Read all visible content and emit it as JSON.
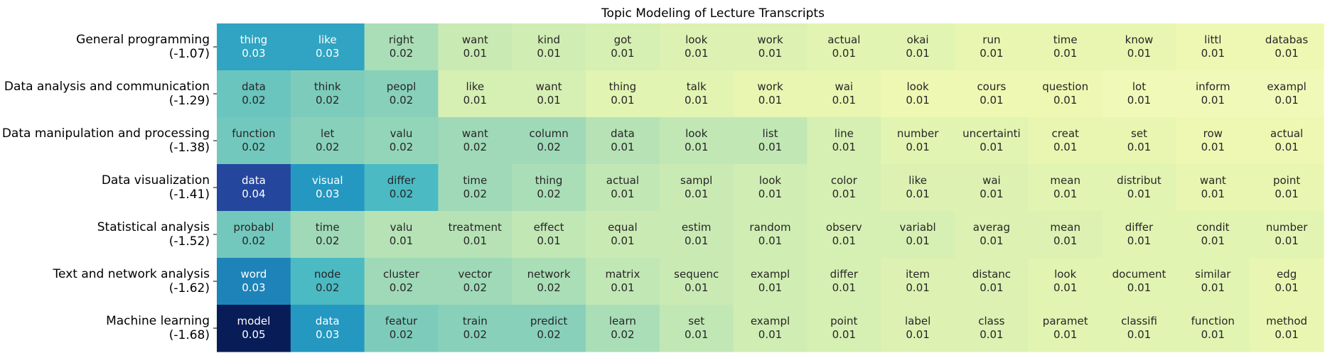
{
  "chart_data": {
    "type": "heatmap",
    "title": "Topic Modeling of Lecture Transcripts",
    "colormap": "YlGnBu",
    "color_range": [
      0,
      0.05
    ],
    "grid": false,
    "rows": [
      {
        "topic": "General programming",
        "score": "(-1.07)",
        "words": [
          "thing",
          "like",
          "right",
          "want",
          "kind",
          "got",
          "look",
          "work",
          "actual",
          "okai",
          "run",
          "time",
          "know",
          "littl",
          "databas"
        ],
        "values": [
          0.03,
          0.03,
          0.02,
          0.01,
          0.01,
          0.01,
          0.01,
          0.01,
          0.01,
          0.01,
          0.01,
          0.01,
          0.01,
          0.01,
          0.01
        ],
        "shades": [
          0.028,
          0.028,
          0.015,
          0.012,
          0.011,
          0.01,
          0.009,
          0.009,
          0.008,
          0.008,
          0.007,
          0.007,
          0.007,
          0.006,
          0.006
        ]
      },
      {
        "topic": "Data analysis and communication",
        "score": "(-1.29)",
        "words": [
          "data",
          "think",
          "peopl",
          "like",
          "want",
          "thing",
          "talk",
          "work",
          "wai",
          "look",
          "cours",
          "question",
          "lot",
          "inform",
          "exampl"
        ],
        "values": [
          0.02,
          0.02,
          0.02,
          0.01,
          0.01,
          0.01,
          0.01,
          0.01,
          0.01,
          0.01,
          0.01,
          0.01,
          0.01,
          0.01,
          0.01
        ],
        "shades": [
          0.021,
          0.019,
          0.018,
          0.01,
          0.01,
          0.008,
          0.008,
          0.007,
          0.007,
          0.006,
          0.006,
          0.006,
          0.005,
          0.005,
          0.005
        ]
      },
      {
        "topic": "Data manipulation and processing",
        "score": "(-1.38)",
        "words": [
          "function",
          "let",
          "valu",
          "want",
          "column",
          "data",
          "look",
          "list",
          "line",
          "number",
          "uncertainti",
          "creat",
          "set",
          "row",
          "actual"
        ],
        "values": [
          0.02,
          0.02,
          0.02,
          0.02,
          0.02,
          0.01,
          0.01,
          0.01,
          0.01,
          0.01,
          0.01,
          0.01,
          0.01,
          0.01,
          0.01
        ],
        "shades": [
          0.02,
          0.018,
          0.017,
          0.016,
          0.016,
          0.014,
          0.013,
          0.013,
          0.01,
          0.008,
          0.008,
          0.007,
          0.007,
          0.006,
          0.006
        ]
      },
      {
        "topic": "Data visualization",
        "score": "(-1.41)",
        "words": [
          "data",
          "visual",
          "differ",
          "time",
          "thing",
          "actual",
          "sampl",
          "look",
          "color",
          "like",
          "wai",
          "mean",
          "distribut",
          "want",
          "point"
        ],
        "values": [
          0.04,
          0.03,
          0.02,
          0.02,
          0.02,
          0.01,
          0.01,
          0.01,
          0.01,
          0.01,
          0.01,
          0.01,
          0.01,
          0.01,
          0.01
        ],
        "shades": [
          0.041,
          0.03,
          0.024,
          0.016,
          0.015,
          0.013,
          0.012,
          0.011,
          0.01,
          0.009,
          0.009,
          0.008,
          0.008,
          0.007,
          0.007
        ]
      },
      {
        "topic": "Statistical analysis",
        "score": "(-1.52)",
        "words": [
          "probabl",
          "time",
          "valu",
          "treatment",
          "effect",
          "equal",
          "estim",
          "random",
          "observ",
          "variabl",
          "averag",
          "mean",
          "differ",
          "condit",
          "number"
        ],
        "values": [
          0.02,
          0.02,
          0.01,
          0.01,
          0.01,
          0.01,
          0.01,
          0.01,
          0.01,
          0.01,
          0.01,
          0.01,
          0.01,
          0.01,
          0.01
        ],
        "shades": [
          0.02,
          0.016,
          0.014,
          0.014,
          0.013,
          0.012,
          0.012,
          0.011,
          0.01,
          0.01,
          0.009,
          0.009,
          0.008,
          0.008,
          0.008
        ]
      },
      {
        "topic": "Text and network analysis",
        "score": "(-1.62)",
        "words": [
          "word",
          "node",
          "cluster",
          "vector",
          "network",
          "matrix",
          "sequenc",
          "exampl",
          "differ",
          "item",
          "distanc",
          "look",
          "document",
          "similar",
          "edg"
        ],
        "values": [
          0.03,
          0.02,
          0.02,
          0.02,
          0.02,
          0.01,
          0.01,
          0.01,
          0.01,
          0.01,
          0.01,
          0.01,
          0.01,
          0.01,
          0.01
        ],
        "shades": [
          0.033,
          0.024,
          0.016,
          0.016,
          0.015,
          0.013,
          0.012,
          0.011,
          0.01,
          0.009,
          0.009,
          0.008,
          0.008,
          0.008,
          0.007
        ]
      },
      {
        "topic": "Machine learning",
        "score": "(-1.68)",
        "words": [
          "model",
          "data",
          "featur",
          "train",
          "predict",
          "learn",
          "set",
          "exampl",
          "point",
          "label",
          "class",
          "paramet",
          "classifi",
          "function",
          "method"
        ],
        "values": [
          0.05,
          0.03,
          0.02,
          0.02,
          0.02,
          0.02,
          0.01,
          0.01,
          0.01,
          0.01,
          0.01,
          0.01,
          0.01,
          0.01,
          0.01
        ],
        "shades": [
          0.052,
          0.03,
          0.019,
          0.018,
          0.018,
          0.015,
          0.013,
          0.011,
          0.01,
          0.009,
          0.009,
          0.008,
          0.008,
          0.008,
          0.007
        ]
      }
    ]
  }
}
